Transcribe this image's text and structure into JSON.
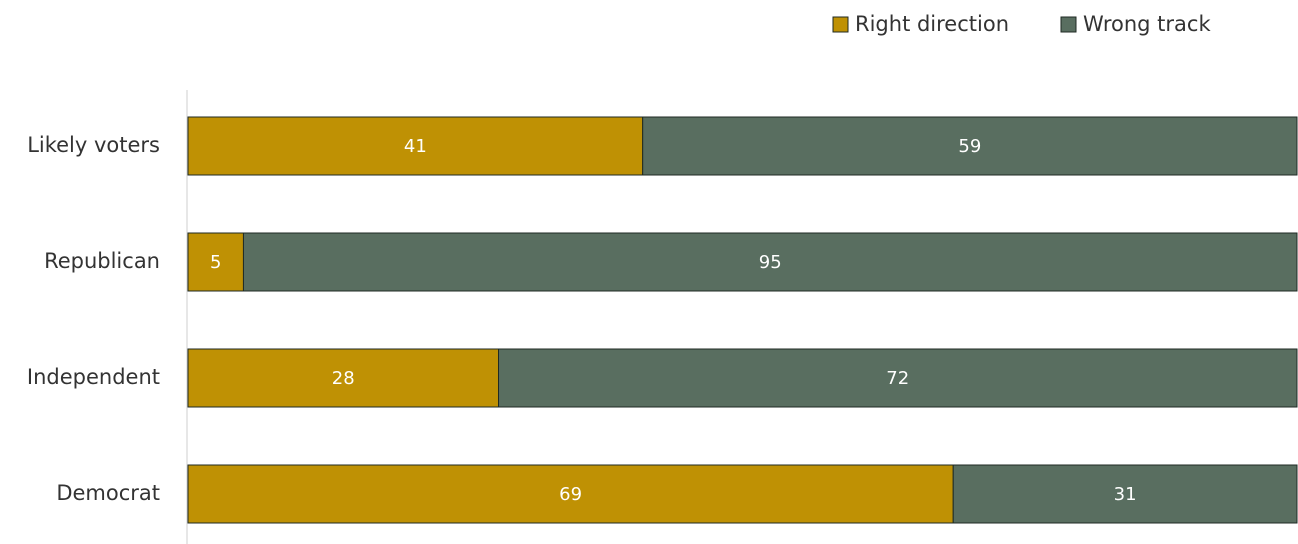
{
  "chart_data": {
    "type": "stacked-bar-horizontal",
    "categories": [
      "Likely voters",
      "Republican",
      "Independent",
      "Democrat"
    ],
    "series": [
      {
        "name": "Right direction",
        "color": "#bf9104",
        "values": [
          41,
          5,
          28,
          69
        ]
      },
      {
        "name": "Wrong track",
        "color": "#596e60",
        "values": [
          59,
          95,
          72,
          31
        ]
      }
    ],
    "xlim": [
      0,
      100
    ],
    "legend": "top-right"
  }
}
